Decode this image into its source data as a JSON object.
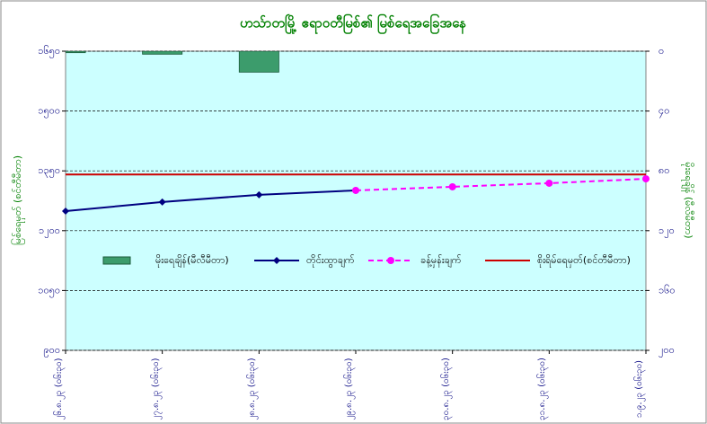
{
  "chart_data": {
    "type": "combo",
    "title": "ဟသ်ာတမြို့ ဧရာဝတီမြစ်၏ မြစ်ရေအခြေအနေ",
    "y_label": "မြစ်ရေမှတ် (စင်တီမီတာ)",
    "y2_label": "မိုးရေချိန် (မီလီမီတာ)",
    "categories": [
      "၂၆.၈.၂၃ (၀၆း၃၀)",
      "၂၇.၈.၂၃ (၀၆း၃၀)",
      "၂၈.၈.၂၃ (၀၆း၃၀)",
      "၂၉.၈.၂၃ (၀၆း၃၀)",
      "၃၀.၈.၂၃ (၀၆း၃၀)",
      "၃၁.၈.၂၃ (၀၆း၃၀)",
      "၁.၉.၂၃ (၀၆း၃၀)"
    ],
    "series": [
      {
        "name": "မိုးရေချိန်(မီလီမီတာ)",
        "kind": "bar",
        "axis": "y2",
        "color": "#3c9c6c",
        "values": [
          1,
          2,
          14,
          null,
          null,
          null,
          null
        ]
      },
      {
        "name": "တိုင်းထွာချက်",
        "kind": "line",
        "color": "#000080",
        "marker": "diamond",
        "values": [
          1249,
          1272,
          1290,
          1301,
          null,
          null,
          null
        ]
      },
      {
        "name": "ခန့်မှန်းချက်",
        "kind": "line",
        "color": "#ff00ff",
        "marker": "circle",
        "dashed": true,
        "values": [
          null,
          null,
          null,
          1301,
          1310,
          1319,
          1330
        ]
      },
      {
        "name": "စိုးရိမ်ရေမှတ်(စင်တီမီတာ)",
        "kind": "hline",
        "color": "#cc0000",
        "value": 1341
      }
    ],
    "ylim": [
      900,
      1650
    ],
    "yticks": [
      {
        "value": 900,
        "label": "၉၀၀"
      },
      {
        "value": 1050,
        "label": "၁၀၅၀"
      },
      {
        "value": 1200,
        "label": "၁၂၀၀"
      },
      {
        "value": 1350,
        "label": "၁၃၅၀"
      },
      {
        "value": 1500,
        "label": "၁၅၀၀"
      },
      {
        "value": 1650,
        "label": "၁၆၅၀"
      }
    ],
    "y2lim": [
      200,
      0
    ],
    "y2ticks": [
      {
        "value": 200,
        "label": "၂၀၀"
      },
      {
        "value": 160,
        "label": "၁၆၀"
      },
      {
        "value": 120,
        "label": "၁၂၀"
      },
      {
        "value": 80,
        "label": "၈၀"
      },
      {
        "value": 40,
        "label": "၄၀"
      },
      {
        "value": 0,
        "label": "၀"
      }
    ],
    "grid": true,
    "legend": "center"
  }
}
